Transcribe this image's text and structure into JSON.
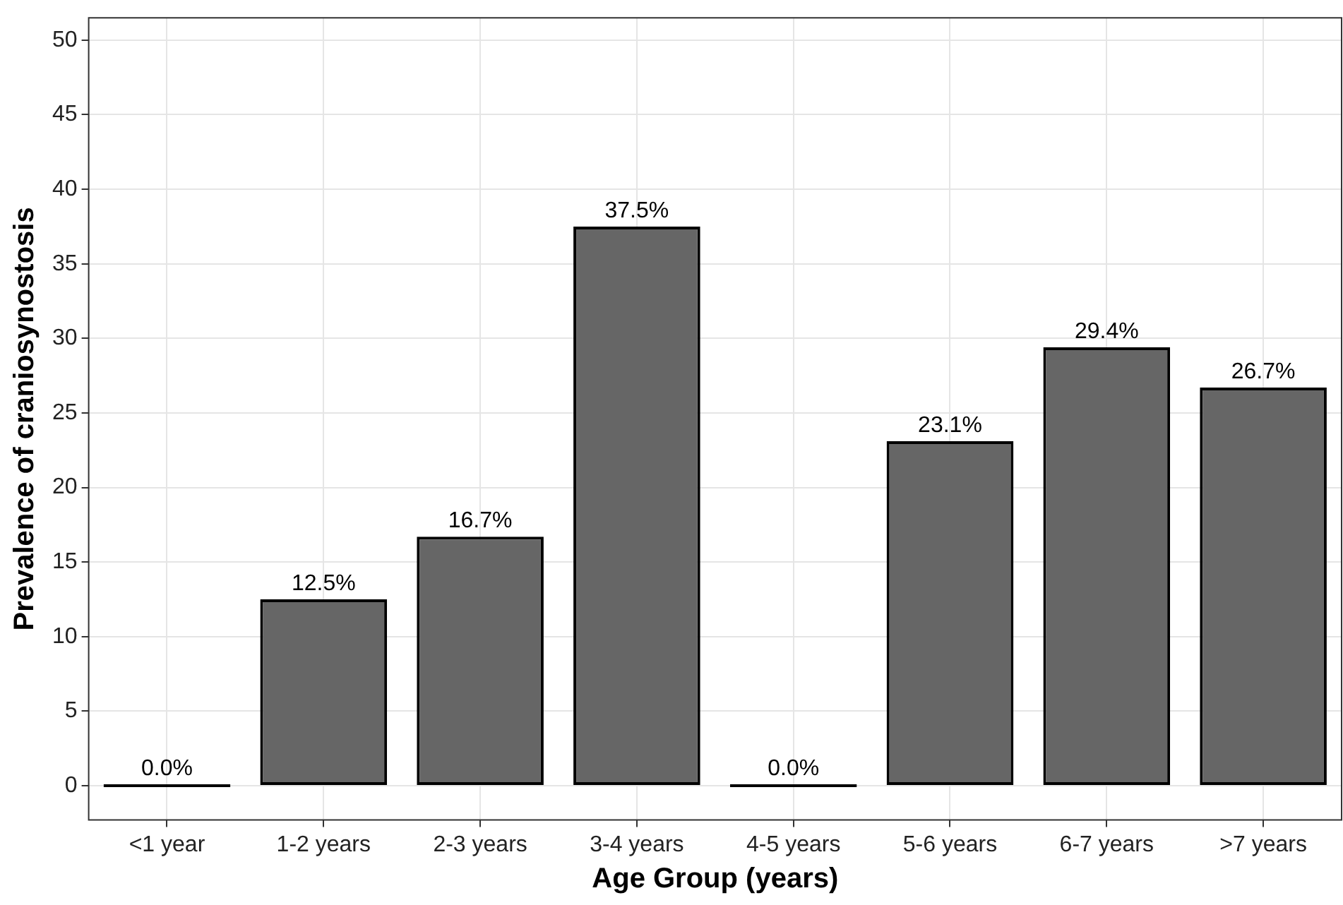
{
  "chart_data": {
    "type": "bar",
    "xlabel": "Age Group (years)",
    "ylabel": "Prevalence of craniosynostosis",
    "categories": [
      "<1 year",
      "1-2 years",
      "2-3 years",
      "3-4 years",
      "4-5 years",
      "5-6 years",
      "6-7 years",
      ">7 years"
    ],
    "values": [
      0,
      12.5,
      16.7,
      37.5,
      0,
      23.1,
      29.4,
      26.7
    ],
    "value_labels": [
      "0.0%",
      "12.5%",
      "16.7%",
      "37.5%",
      "0.0%",
      "23.1%",
      "29.4%",
      "26.7%"
    ],
    "colors": [
      "#000000",
      "#666666",
      "#666666",
      "#666666",
      "#000000",
      "#666666",
      "#666666",
      "#666666"
    ],
    "ylim": [
      -2.3,
      51.5
    ],
    "yticks": [
      0,
      5,
      10,
      15,
      20,
      25,
      30,
      35,
      40,
      45,
      50
    ],
    "grid": true,
    "legend": false
  }
}
